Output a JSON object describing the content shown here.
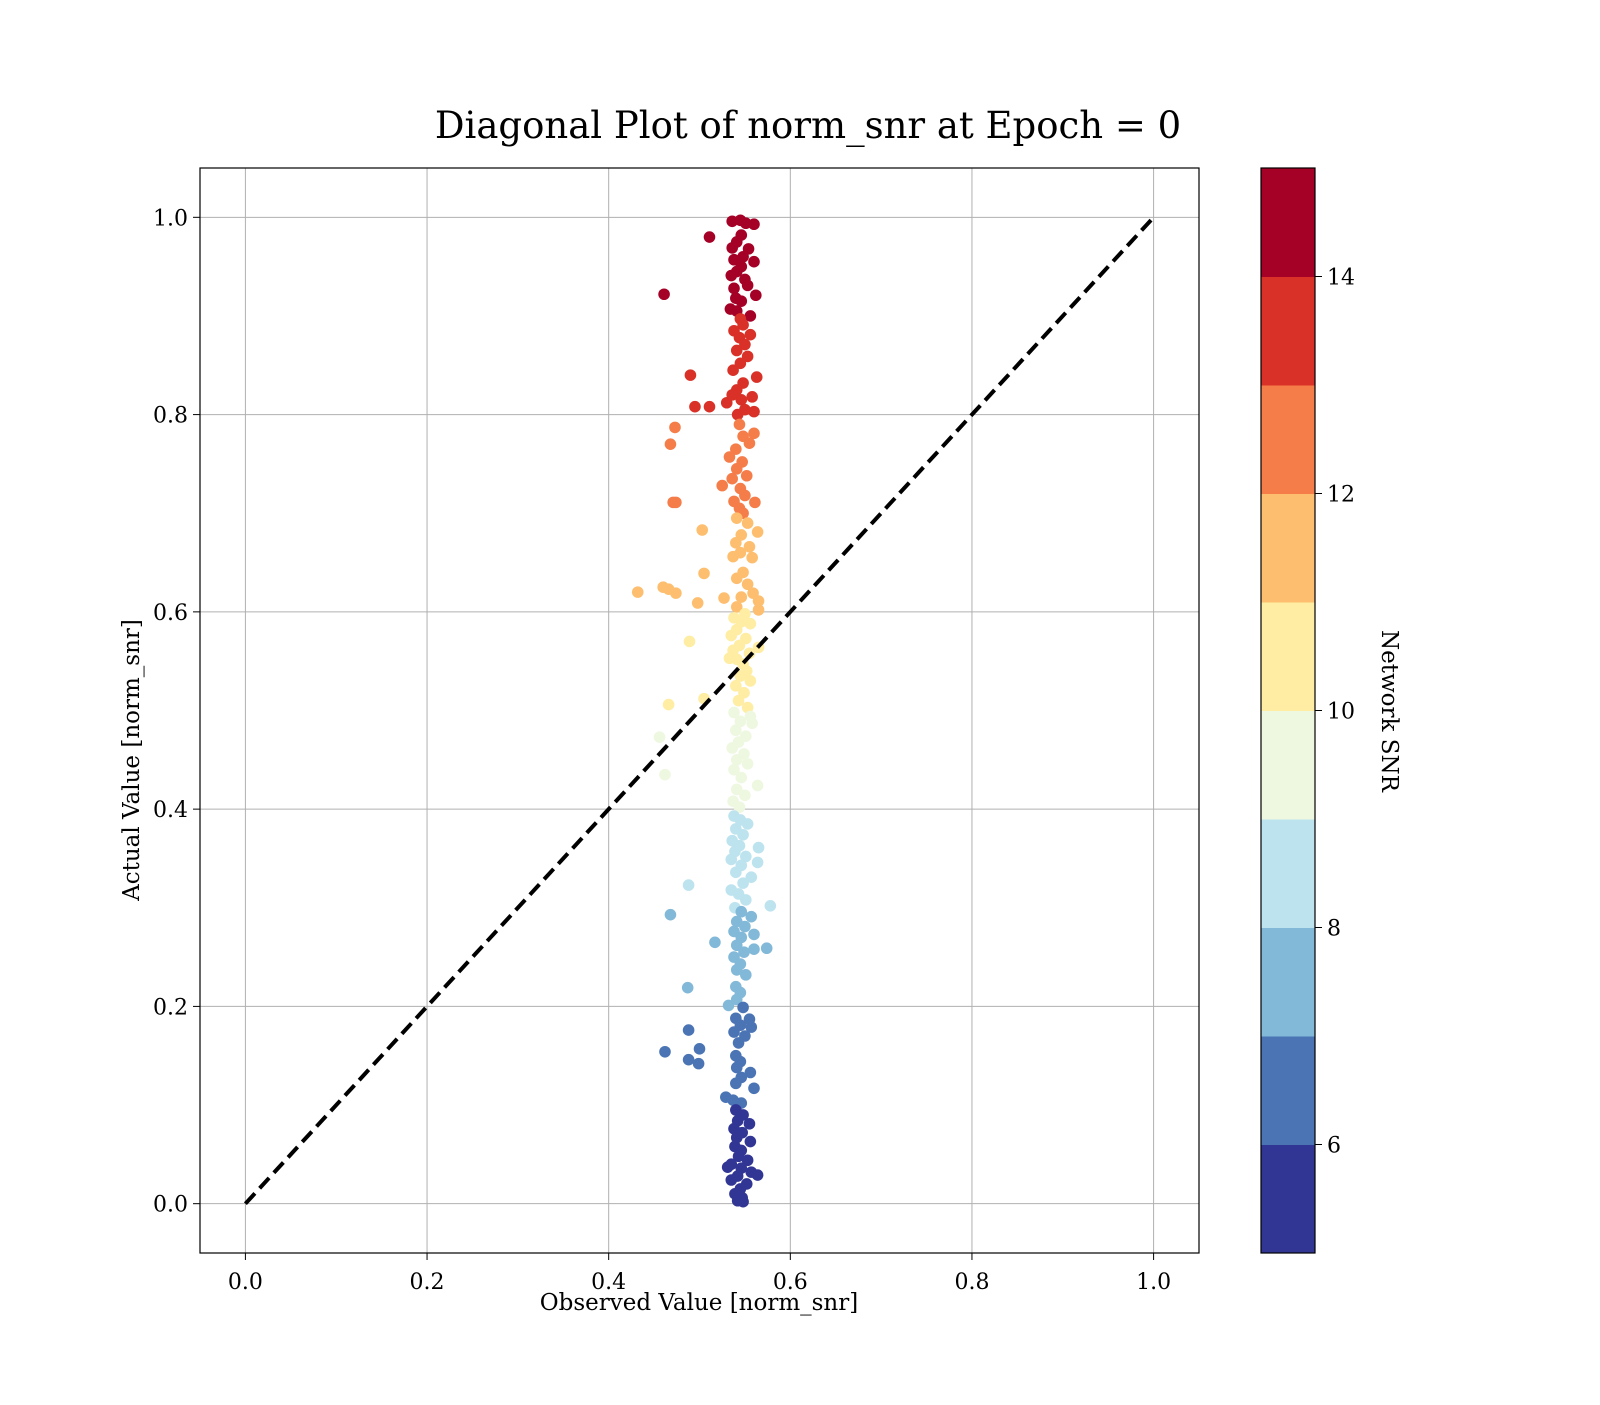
{
  "chart_data": {
    "type": "scatter",
    "title": "Diagonal Plot of norm_snr at Epoch = 0",
    "xlabel": "Observed Value [norm_snr]",
    "ylabel": "Actual Value [norm_snr]",
    "xlim": [
      -0.05,
      1.05
    ],
    "ylim": [
      -0.05,
      1.05
    ],
    "xticks": [
      "0.0",
      "0.2",
      "0.4",
      "0.6",
      "0.8",
      "1.0"
    ],
    "yticks": [
      "0.0",
      "0.2",
      "0.4",
      "0.6",
      "0.8",
      "1.0"
    ],
    "grid": true,
    "reference_line": {
      "from": [
        0,
        0
      ],
      "to": [
        1,
        1
      ],
      "style": "dashed",
      "color": "#000000"
    },
    "colorbar": {
      "label": "Network SNR",
      "range": [
        5,
        15
      ],
      "ticks": [
        "6",
        "8",
        "10",
        "12",
        "14"
      ],
      "bins": 10,
      "colors": [
        "#313695",
        "#4a74b4",
        "#83b9d8",
        "#bde3ef",
        "#eef8e0",
        "#feeda2",
        "#fdbf6f",
        "#f57d4a",
        "#d93127",
        "#a50026"
      ]
    },
    "points": [
      [
        0.545,
        0.997
      ],
      [
        0.536,
        0.996
      ],
      [
        0.551,
        0.994
      ],
      [
        0.56,
        0.993
      ],
      [
        0.511,
        0.98
      ],
      [
        0.546,
        0.982
      ],
      [
        0.541,
        0.975
      ],
      [
        0.536,
        0.969
      ],
      [
        0.554,
        0.968
      ],
      [
        0.548,
        0.96
      ],
      [
        0.538,
        0.957
      ],
      [
        0.56,
        0.955
      ],
      [
        0.546,
        0.95
      ],
      [
        0.541,
        0.945
      ],
      [
        0.535,
        0.941
      ],
      [
        0.55,
        0.937
      ],
      [
        0.553,
        0.931
      ],
      [
        0.538,
        0.928
      ],
      [
        0.461,
        0.922
      ],
      [
        0.562,
        0.921
      ],
      [
        0.54,
        0.918
      ],
      [
        0.546,
        0.915
      ],
      [
        0.534,
        0.907
      ],
      [
        0.541,
        0.905
      ],
      [
        0.556,
        0.9
      ],
      [
        0.545,
        0.897
      ],
      [
        0.548,
        0.891
      ],
      [
        0.538,
        0.885
      ],
      [
        0.556,
        0.881
      ],
      [
        0.544,
        0.878
      ],
      [
        0.55,
        0.871
      ],
      [
        0.541,
        0.865
      ],
      [
        0.553,
        0.859
      ],
      [
        0.545,
        0.852
      ],
      [
        0.537,
        0.845
      ],
      [
        0.49,
        0.84
      ],
      [
        0.563,
        0.838
      ],
      [
        0.548,
        0.832
      ],
      [
        0.541,
        0.825
      ],
      [
        0.558,
        0.818
      ],
      [
        0.546,
        0.815
      ],
      [
        0.53,
        0.812
      ],
      [
        0.495,
        0.808
      ],
      [
        0.511,
        0.808
      ],
      [
        0.56,
        0.803
      ],
      [
        0.542,
        0.8
      ],
      [
        0.55,
        0.805
      ],
      [
        0.536,
        0.82
      ],
      [
        0.544,
        0.79
      ],
      [
        0.473,
        0.787
      ],
      [
        0.56,
        0.781
      ],
      [
        0.548,
        0.778
      ],
      [
        0.468,
        0.77
      ],
      [
        0.555,
        0.771
      ],
      [
        0.54,
        0.765
      ],
      [
        0.533,
        0.757
      ],
      [
        0.547,
        0.752
      ],
      [
        0.541,
        0.745
      ],
      [
        0.552,
        0.738
      ],
      [
        0.536,
        0.735
      ],
      [
        0.525,
        0.728
      ],
      [
        0.545,
        0.725
      ],
      [
        0.55,
        0.718
      ],
      [
        0.471,
        0.711
      ],
      [
        0.474,
        0.711
      ],
      [
        0.561,
        0.711
      ],
      [
        0.538,
        0.712
      ],
      [
        0.544,
        0.705
      ],
      [
        0.548,
        0.7
      ],
      [
        0.541,
        0.695
      ],
      [
        0.553,
        0.69
      ],
      [
        0.503,
        0.683
      ],
      [
        0.564,
        0.681
      ],
      [
        0.546,
        0.678
      ],
      [
        0.54,
        0.67
      ],
      [
        0.555,
        0.666
      ],
      [
        0.545,
        0.66
      ],
      [
        0.537,
        0.656
      ],
      [
        0.558,
        0.655
      ],
      [
        0.505,
        0.639
      ],
      [
        0.548,
        0.64
      ],
      [
        0.541,
        0.634
      ],
      [
        0.553,
        0.628
      ],
      [
        0.46,
        0.625
      ],
      [
        0.466,
        0.623
      ],
      [
        0.432,
        0.62
      ],
      [
        0.474,
        0.619
      ],
      [
        0.559,
        0.619
      ],
      [
        0.546,
        0.615
      ],
      [
        0.527,
        0.614
      ],
      [
        0.565,
        0.611
      ],
      [
        0.498,
        0.609
      ],
      [
        0.541,
        0.605
      ],
      [
        0.565,
        0.602
      ],
      [
        0.55,
        0.598
      ],
      [
        0.538,
        0.594
      ],
      [
        0.546,
        0.59
      ],
      [
        0.556,
        0.588
      ],
      [
        0.541,
        0.582
      ],
      [
        0.535,
        0.576
      ],
      [
        0.551,
        0.573
      ],
      [
        0.489,
        0.57
      ],
      [
        0.544,
        0.566
      ],
      [
        0.565,
        0.564
      ],
      [
        0.537,
        0.561
      ],
      [
        0.555,
        0.558
      ],
      [
        0.541,
        0.552
      ],
      [
        0.548,
        0.547
      ],
      [
        0.533,
        0.553
      ],
      [
        0.552,
        0.54
      ],
      [
        0.545,
        0.535
      ],
      [
        0.556,
        0.53
      ],
      [
        0.54,
        0.525
      ],
      [
        0.549,
        0.518
      ],
      [
        0.505,
        0.512
      ],
      [
        0.543,
        0.51
      ],
      [
        0.466,
        0.506
      ],
      [
        0.553,
        0.503
      ],
      [
        0.538,
        0.498
      ],
      [
        0.556,
        0.494
      ],
      [
        0.545,
        0.489
      ],
      [
        0.558,
        0.487
      ],
      [
        0.54,
        0.48
      ],
      [
        0.551,
        0.474
      ],
      [
        0.456,
        0.473
      ],
      [
        0.543,
        0.468
      ],
      [
        0.536,
        0.462
      ],
      [
        0.549,
        0.456
      ],
      [
        0.541,
        0.45
      ],
      [
        0.553,
        0.446
      ],
      [
        0.538,
        0.44
      ],
      [
        0.462,
        0.435
      ],
      [
        0.546,
        0.432
      ],
      [
        0.564,
        0.424
      ],
      [
        0.541,
        0.42
      ],
      [
        0.55,
        0.414
      ],
      [
        0.537,
        0.408
      ],
      [
        0.544,
        0.402
      ],
      [
        0.538,
        0.393
      ],
      [
        0.545,
        0.389
      ],
      [
        0.553,
        0.385
      ],
      [
        0.54,
        0.38
      ],
      [
        0.548,
        0.374
      ],
      [
        0.536,
        0.368
      ],
      [
        0.544,
        0.363
      ],
      [
        0.565,
        0.361
      ],
      [
        0.539,
        0.357
      ],
      [
        0.551,
        0.352
      ],
      [
        0.535,
        0.349
      ],
      [
        0.564,
        0.346
      ],
      [
        0.546,
        0.343
      ],
      [
        0.54,
        0.336
      ],
      [
        0.557,
        0.331
      ],
      [
        0.488,
        0.323
      ],
      [
        0.548,
        0.325
      ],
      [
        0.535,
        0.318
      ],
      [
        0.543,
        0.314
      ],
      [
        0.551,
        0.308
      ],
      [
        0.578,
        0.302
      ],
      [
        0.539,
        0.3
      ],
      [
        0.546,
        0.296
      ],
      [
        0.468,
        0.293
      ],
      [
        0.557,
        0.291
      ],
      [
        0.541,
        0.286
      ],
      [
        0.55,
        0.281
      ],
      [
        0.538,
        0.276
      ],
      [
        0.56,
        0.273
      ],
      [
        0.546,
        0.27
      ],
      [
        0.517,
        0.265
      ],
      [
        0.541,
        0.262
      ],
      [
        0.574,
        0.259
      ],
      [
        0.56,
        0.258
      ],
      [
        0.549,
        0.255
      ],
      [
        0.538,
        0.25
      ],
      [
        0.545,
        0.243
      ],
      [
        0.541,
        0.237
      ],
      [
        0.551,
        0.232
      ],
      [
        0.487,
        0.219
      ],
      [
        0.54,
        0.22
      ],
      [
        0.545,
        0.214
      ],
      [
        0.541,
        0.207
      ],
      [
        0.532,
        0.201
      ],
      [
        0.548,
        0.199
      ],
      [
        0.54,
        0.188
      ],
      [
        0.555,
        0.187
      ],
      [
        0.545,
        0.181
      ],
      [
        0.557,
        0.179
      ],
      [
        0.488,
        0.176
      ],
      [
        0.538,
        0.174
      ],
      [
        0.55,
        0.17
      ],
      [
        0.543,
        0.163
      ],
      [
        0.5,
        0.157
      ],
      [
        0.462,
        0.154
      ],
      [
        0.54,
        0.15
      ],
      [
        0.488,
        0.146
      ],
      [
        0.545,
        0.144
      ],
      [
        0.499,
        0.142
      ],
      [
        0.541,
        0.138
      ],
      [
        0.556,
        0.133
      ],
      [
        0.546,
        0.128
      ],
      [
        0.54,
        0.122
      ],
      [
        0.56,
        0.117
      ],
      [
        0.529,
        0.108
      ],
      [
        0.537,
        0.105
      ],
      [
        0.546,
        0.102
      ],
      [
        0.54,
        0.095
      ],
      [
        0.548,
        0.09
      ],
      [
        0.542,
        0.084
      ],
      [
        0.555,
        0.081
      ],
      [
        0.538,
        0.076
      ],
      [
        0.547,
        0.072
      ],
      [
        0.541,
        0.067
      ],
      [
        0.556,
        0.063
      ],
      [
        0.539,
        0.058
      ],
      [
        0.546,
        0.054
      ],
      [
        0.543,
        0.048
      ],
      [
        0.553,
        0.044
      ],
      [
        0.535,
        0.04
      ],
      [
        0.546,
        0.036
      ],
      [
        0.531,
        0.037
      ],
      [
        0.557,
        0.032
      ],
      [
        0.564,
        0.029
      ],
      [
        0.542,
        0.028
      ],
      [
        0.535,
        0.024
      ],
      [
        0.552,
        0.02
      ],
      [
        0.545,
        0.015
      ],
      [
        0.539,
        0.01
      ],
      [
        0.547,
        0.006
      ],
      [
        0.542,
        0.003
      ],
      [
        0.548,
        0.002
      ]
    ]
  }
}
